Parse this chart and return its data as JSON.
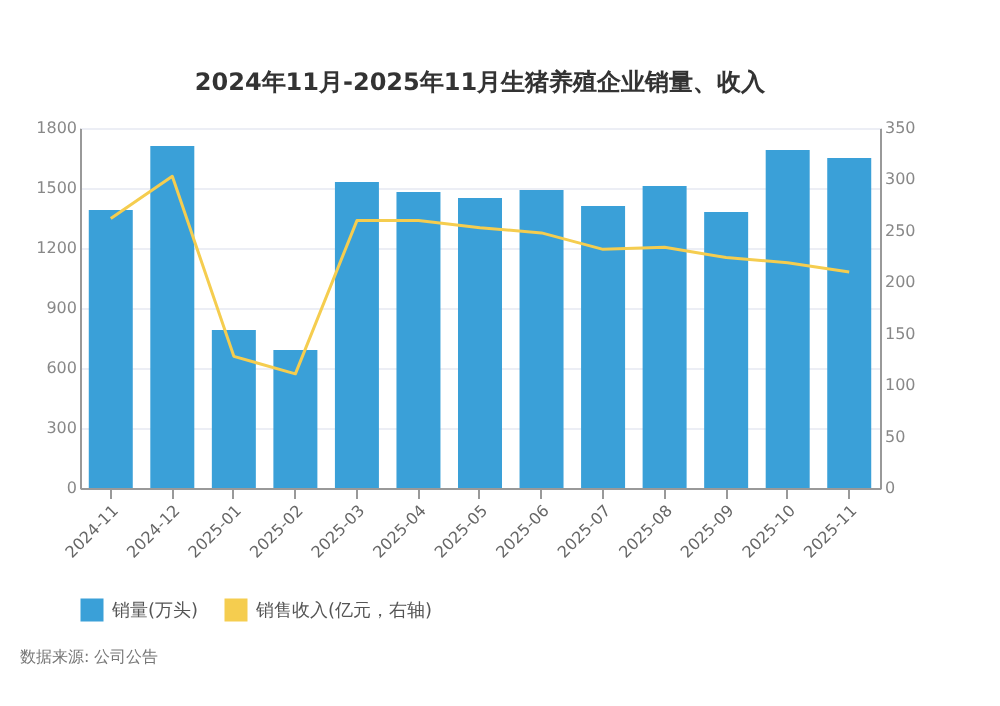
{
  "chart_data": {
    "type": "bar",
    "title": "2024年11月-2025年11月生猪养殖企业销量、收入",
    "categories": [
      "2024-11",
      "2024-12",
      "2025-01",
      "2025-02",
      "2025-03",
      "2025-04",
      "2025-05",
      "2025-06",
      "2025-07",
      "2025-08",
      "2025-09",
      "2025-10",
      "2025-11"
    ],
    "series": [
      {
        "name": "销量(万头)",
        "color": "#3aa0d8",
        "values": [
          1390,
          1710,
          790,
          690,
          1530,
          1480,
          1450,
          1490,
          1410,
          1510,
          1380,
          1690,
          1650
        ]
      },
      {
        "name": "销售收入(亿元，右轴)",
        "type": "line",
        "axis": "y2",
        "color": "#f5cd4f",
        "values": [
          262,
          303,
          128,
          111,
          260,
          260,
          253,
          248,
          232,
          234,
          224,
          219,
          210
        ]
      }
    ],
    "ylim": [
      0,
      1800
    ],
    "yticks": [
      0,
      300,
      600,
      900,
      1200,
      1500,
      1800
    ],
    "y2lim": [
      0,
      350
    ],
    "y2ticks": [
      0,
      50,
      100,
      150,
      200,
      250,
      300,
      350
    ],
    "grid": "y",
    "legend": "bottom",
    "marker": "none",
    "line_style": "solid",
    "annotations": [
      "数据来源: 公司公告"
    ]
  }
}
